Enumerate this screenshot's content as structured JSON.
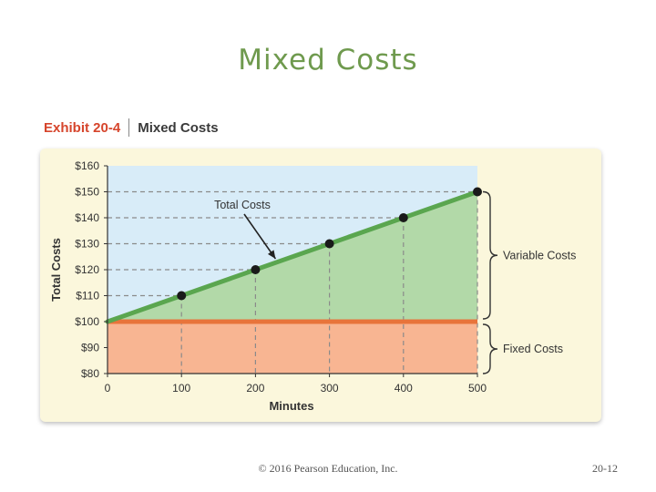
{
  "slide": {
    "title": "Mixed Costs",
    "footer_copyright": "© 2016 Pearson Education, Inc.",
    "page_number": "20-12"
  },
  "exhibit": {
    "label": "Exhibit 20-4",
    "name": "Mixed Costs"
  },
  "colors": {
    "title_green": "#6f9a4e",
    "exhibit_red": "#d6452c",
    "panel_bg": "#fbf7dc",
    "plot_bg_blue": "#d8ecf8",
    "variable_area_green": "#b2d9a8",
    "fixed_area_orange": "#f8b592",
    "total_line_green": "#5aa64f",
    "fixed_line_orange": "#e8743b",
    "point_black": "#1a1a1a"
  },
  "chart_data": {
    "type": "line",
    "xlabel": "Minutes",
    "ylabel": "Total Costs",
    "x_ticks": [
      0,
      100,
      200,
      300,
      400,
      500
    ],
    "y_ticks": [
      80,
      90,
      100,
      110,
      120,
      130,
      140,
      150,
      160
    ],
    "x_tick_labels": [
      "0",
      "100",
      "200",
      "300",
      "400",
      "500"
    ],
    "y_tick_labels": [
      "$80",
      "$90",
      "$100",
      "$110",
      "$120",
      "$130",
      "$140",
      "$150",
      "$160"
    ],
    "xlim": [
      0,
      500
    ],
    "ylim": [
      80,
      160
    ],
    "fixed_cost": 100,
    "series": [
      {
        "name": "Total Costs",
        "x": [
          0,
          100,
          200,
          300,
          400,
          500
        ],
        "y": [
          100,
          110,
          120,
          130,
          140,
          150
        ],
        "markers_at": [
          100,
          200,
          300,
          400,
          500
        ]
      }
    ],
    "annotations": {
      "total_costs": "Total Costs",
      "variable_costs": "Variable Costs",
      "fixed_costs": "Fixed Costs"
    }
  }
}
